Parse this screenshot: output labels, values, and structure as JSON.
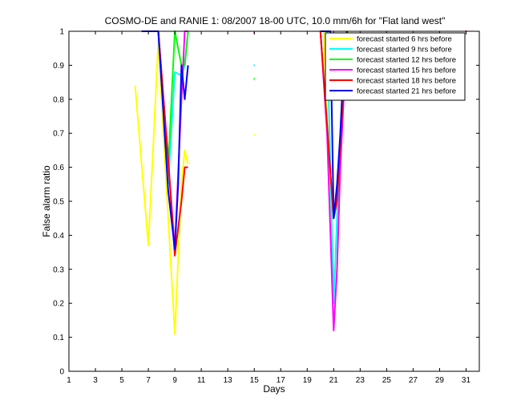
{
  "chart_data": {
    "type": "line",
    "title": "COSMO-DE and RANIE 1: 08/2007 18-00 UTC, 10.0 mm/6h for \"Flat land west\"",
    "xlabel": "Days",
    "ylabel": "False alarm ratio",
    "xlim": [
      1,
      32
    ],
    "ylim": [
      0,
      1
    ],
    "xticks": [
      1,
      3,
      5,
      7,
      9,
      11,
      13,
      15,
      17,
      19,
      21,
      23,
      25,
      27,
      29,
      31
    ],
    "yticks": [
      0,
      0.1,
      0.2,
      0.3,
      0.4,
      0.5,
      0.6,
      0.7,
      0.8,
      0.9,
      1
    ],
    "ytick_labels": [
      "0",
      "0.1",
      "0.2",
      "0.3",
      "0.4",
      "0.5",
      "0.6",
      "0.7",
      "0.8",
      "0.9",
      "1"
    ],
    "grid": false,
    "legend_position": "top-right",
    "series": [
      {
        "name": "forecast started 6 hrs before",
        "color": "#ffff00",
        "segments": [
          [
            [
              6.0,
              0.84
            ],
            [
              7.0,
              0.37
            ],
            [
              7.75,
              0.97
            ],
            [
              8.5,
              0.45
            ],
            [
              9.0,
              0.11
            ],
            [
              9.5,
              0.55
            ],
            [
              9.75,
              0.65
            ],
            [
              10.0,
              0.61
            ]
          ],
          [
            [
              20.25,
              1.0
            ],
            [
              20.5,
              0.75
            ],
            [
              21.0,
              0.28
            ],
            [
              21.25,
              0.3
            ],
            [
              21.5,
              0.6
            ],
            [
              21.75,
              0.92
            ],
            [
              22.0,
              1.0
            ],
            [
              22.25,
              0.99
            ],
            [
              23.0,
              0.97
            ],
            [
              23.5,
              0.955
            ]
          ]
        ],
        "points": [
          [
            15.0,
            0.695
          ],
          [
            31.0,
            1.0
          ]
        ]
      },
      {
        "name": "forecast started 9 hrs before",
        "color": "#00ffff",
        "segments": [
          [
            [
              7.75,
              1.0
            ],
            [
              8.5,
              0.55
            ],
            [
              9.0,
              0.88
            ],
            [
              9.25,
              0.875
            ],
            [
              9.5,
              0.87
            ],
            [
              9.75,
              0.9
            ],
            [
              10.0,
              1.0
            ]
          ],
          [
            [
              20.0,
              1.0
            ],
            [
              20.5,
              1.0
            ],
            [
              21.0,
              0.2
            ],
            [
              21.25,
              0.45
            ],
            [
              21.75,
              0.85
            ],
            [
              22.0,
              1.0
            ]
          ]
        ],
        "points": [
          [
            15.0,
            0.9
          ]
        ]
      },
      {
        "name": "forecast started 12 hrs before",
        "color": "#00ff00",
        "segments": [
          [
            [
              7.75,
              1.0
            ],
            [
              8.5,
              0.6
            ],
            [
              9.0,
              1.0
            ],
            [
              9.5,
              0.9
            ],
            [
              9.75,
              0.9
            ],
            [
              10.0,
              1.0
            ]
          ],
          [
            [
              20.0,
              1.0
            ],
            [
              21.0,
              0.45
            ],
            [
              21.25,
              0.5
            ],
            [
              21.75,
              0.9
            ],
            [
              22.0,
              1.0
            ]
          ]
        ],
        "points": [
          [
            15.0,
            0.86
          ]
        ]
      },
      {
        "name": "forecast started 15 hrs before",
        "color": "#ff00ff",
        "segments": [
          [
            [
              7.75,
              1.0
            ],
            [
              8.5,
              0.62
            ],
            [
              9.0,
              0.36
            ],
            [
              9.5,
              0.8
            ],
            [
              9.75,
              1.0
            ],
            [
              10.0,
              1.0
            ]
          ],
          [
            [
              20.0,
              1.0
            ],
            [
              20.5,
              0.7
            ],
            [
              21.0,
              0.12
            ],
            [
              21.25,
              0.3
            ],
            [
              21.5,
              0.6
            ],
            [
              21.75,
              0.8
            ],
            [
              22.0,
              1.0
            ]
          ]
        ],
        "points": [
          [
            15.0,
            0.995
          ]
        ]
      },
      {
        "name": "forecast started 18 hrs before",
        "color": "#ff0000",
        "segments": [
          [
            [
              7.75,
              1.0
            ],
            [
              8.5,
              0.62
            ],
            [
              9.0,
              0.34
            ],
            [
              9.5,
              0.5
            ],
            [
              9.75,
              0.6
            ],
            [
              10.0,
              0.6
            ]
          ],
          [
            [
              20.0,
              1.0
            ],
            [
              21.0,
              0.45
            ],
            [
              21.25,
              0.5
            ],
            [
              22.0,
              1.0
            ]
          ]
        ],
        "points": [
          [
            31.0,
            1.0
          ]
        ]
      },
      {
        "name": "forecast started 21 hrs before",
        "color": "#0000ff",
        "segments": [
          [
            [
              6.5,
              1.0
            ],
            [
              7.75,
              1.0
            ],
            [
              8.5,
              0.53
            ],
            [
              9.0,
              0.36
            ],
            [
              9.25,
              0.55
            ],
            [
              9.5,
              0.9
            ],
            [
              9.75,
              0.8
            ],
            [
              10.0,
              0.9
            ]
          ],
          [
            [
              20.0,
              1.0
            ],
            [
              20.75,
              1.0
            ],
            [
              21.0,
              0.45
            ],
            [
              21.25,
              0.55
            ],
            [
              21.5,
              0.7
            ],
            [
              21.75,
              0.9
            ],
            [
              22.0,
              1.0
            ]
          ]
        ],
        "points": []
      }
    ]
  }
}
